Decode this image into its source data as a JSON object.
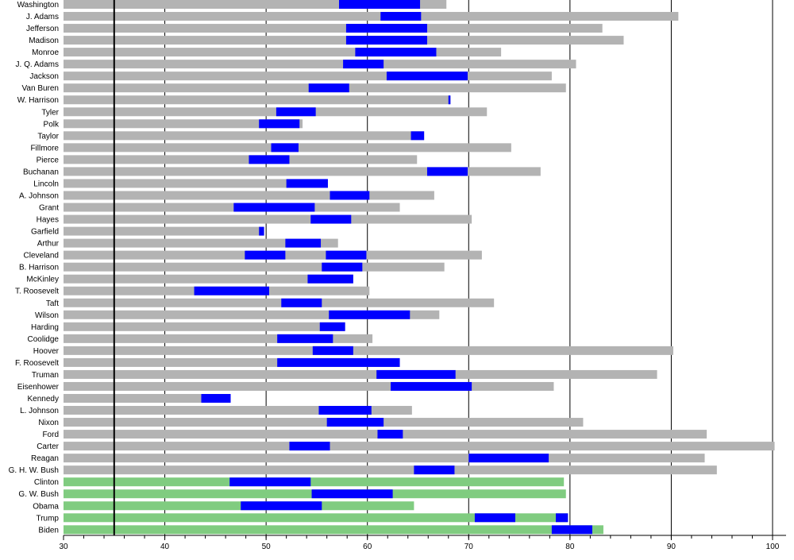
{
  "chart_data": {
    "type": "bar",
    "orientation": "horizontal",
    "xlim": [
      30,
      100
    ],
    "x_ticks": [
      30,
      40,
      50,
      60,
      70,
      80,
      90,
      100
    ],
    "x_tick_labels": [
      "30",
      "40",
      "50",
      "60",
      "70",
      "80",
      "90",
      "100"
    ],
    "minor_tick_step": 2,
    "reference_line": 35,
    "grid": true,
    "colors": {
      "deceased": "#b3b3b3",
      "living": "#80cc80",
      "in_office": "#0000ff",
      "grid": "#000000"
    },
    "presidents": [
      {
        "name": "Washington",
        "terms": [
          [
            57.2,
            65.2
          ]
        ],
        "end": 67.8,
        "living": false
      },
      {
        "name": "J. Adams",
        "terms": [
          [
            61.3,
            65.3
          ]
        ],
        "end": 90.7,
        "living": false
      },
      {
        "name": "Jefferson",
        "terms": [
          [
            57.9,
            65.9
          ]
        ],
        "end": 83.2,
        "living": false
      },
      {
        "name": "Madison",
        "terms": [
          [
            57.9,
            65.9
          ]
        ],
        "end": 85.3,
        "living": false
      },
      {
        "name": "Monroe",
        "terms": [
          [
            58.8,
            66.8
          ]
        ],
        "end": 73.2,
        "living": false
      },
      {
        "name": "J. Q. Adams",
        "terms": [
          [
            57.6,
            61.6
          ]
        ],
        "end": 80.6,
        "living": false
      },
      {
        "name": "Jackson",
        "terms": [
          [
            61.9,
            69.9
          ]
        ],
        "end": 78.2,
        "living": false
      },
      {
        "name": "Van Buren",
        "terms": [
          [
            54.2,
            58.2
          ]
        ],
        "end": 79.6,
        "living": false
      },
      {
        "name": "W. Harrison",
        "terms": [
          [
            68.0,
            68.2
          ]
        ],
        "end": 68.2,
        "living": false
      },
      {
        "name": "Tyler",
        "terms": [
          [
            51.0,
            54.9
          ]
        ],
        "end": 71.8,
        "living": false
      },
      {
        "name": "Polk",
        "terms": [
          [
            49.3,
            53.3
          ]
        ],
        "end": 53.6,
        "living": false
      },
      {
        "name": "Taylor",
        "terms": [
          [
            64.3,
            65.6
          ]
        ],
        "end": 65.6,
        "living": false
      },
      {
        "name": "Fillmore",
        "terms": [
          [
            50.5,
            53.2
          ]
        ],
        "end": 74.2,
        "living": false
      },
      {
        "name": "Pierce",
        "terms": [
          [
            48.3,
            52.3
          ]
        ],
        "end": 64.9,
        "living": false
      },
      {
        "name": "Buchanan",
        "terms": [
          [
            65.9,
            69.9
          ]
        ],
        "end": 77.1,
        "living": false
      },
      {
        "name": "Lincoln",
        "terms": [
          [
            52.0,
            56.1
          ]
        ],
        "end": 56.1,
        "living": false
      },
      {
        "name": "A. Johnson",
        "terms": [
          [
            56.3,
            60.2
          ]
        ],
        "end": 66.6,
        "living": false
      },
      {
        "name": "Grant",
        "terms": [
          [
            46.8,
            54.8
          ]
        ],
        "end": 63.2,
        "living": false
      },
      {
        "name": "Hayes",
        "terms": [
          [
            54.4,
            58.4
          ]
        ],
        "end": 70.3,
        "living": false
      },
      {
        "name": "Garfield",
        "terms": [
          [
            49.3,
            49.8
          ]
        ],
        "end": 49.8,
        "living": false
      },
      {
        "name": "Arthur",
        "terms": [
          [
            51.9,
            55.4
          ]
        ],
        "end": 57.1,
        "living": false
      },
      {
        "name": "Cleveland",
        "terms": [
          [
            47.9,
            51.9
          ],
          [
            55.9,
            59.9
          ]
        ],
        "end": 71.3,
        "living": false
      },
      {
        "name": "B. Harrison",
        "terms": [
          [
            55.5,
            59.5
          ]
        ],
        "end": 67.6,
        "living": false
      },
      {
        "name": "McKinley",
        "terms": [
          [
            54.1,
            58.6
          ]
        ],
        "end": 58.6,
        "living": false
      },
      {
        "name": "T. Roosevelt",
        "terms": [
          [
            42.9,
            50.3
          ]
        ],
        "end": 60.2,
        "living": false
      },
      {
        "name": "Taft",
        "terms": [
          [
            51.5,
            55.5
          ]
        ],
        "end": 72.5,
        "living": false
      },
      {
        "name": "Wilson",
        "terms": [
          [
            56.2,
            64.2
          ]
        ],
        "end": 67.1,
        "living": false
      },
      {
        "name": "Harding",
        "terms": [
          [
            55.3,
            57.8
          ]
        ],
        "end": 57.8,
        "living": false
      },
      {
        "name": "Coolidge",
        "terms": [
          [
            51.1,
            56.6
          ]
        ],
        "end": 60.5,
        "living": false
      },
      {
        "name": "Hoover",
        "terms": [
          [
            54.6,
            58.6
          ]
        ],
        "end": 90.2,
        "living": false
      },
      {
        "name": "F. Roosevelt",
        "terms": [
          [
            51.1,
            63.2
          ]
        ],
        "end": 63.2,
        "living": false
      },
      {
        "name": "Truman",
        "terms": [
          [
            60.9,
            68.7
          ]
        ],
        "end": 88.6,
        "living": false
      },
      {
        "name": "Eisenhower",
        "terms": [
          [
            62.3,
            70.3
          ]
        ],
        "end": 78.4,
        "living": false
      },
      {
        "name": "Kennedy",
        "terms": [
          [
            43.6,
            46.5
          ]
        ],
        "end": 46.5,
        "living": false
      },
      {
        "name": "L. Johnson",
        "terms": [
          [
            55.2,
            60.4
          ]
        ],
        "end": 64.4,
        "living": false
      },
      {
        "name": "Nixon",
        "terms": [
          [
            56.0,
            61.6
          ]
        ],
        "end": 81.3,
        "living": false
      },
      {
        "name": "Ford",
        "terms": [
          [
            61.0,
            63.5
          ]
        ],
        "end": 93.5,
        "living": false
      },
      {
        "name": "Carter",
        "terms": [
          [
            52.3,
            56.3
          ]
        ],
        "end": 100.2,
        "living": false
      },
      {
        "name": "Reagan",
        "terms": [
          [
            70.0,
            77.9
          ]
        ],
        "end": 93.3,
        "living": false
      },
      {
        "name": "G. H. W. Bush",
        "terms": [
          [
            64.6,
            68.6
          ]
        ],
        "end": 94.5,
        "living": false
      },
      {
        "name": "Clinton",
        "terms": [
          [
            46.4,
            54.4
          ]
        ],
        "end": 79.4,
        "living": true
      },
      {
        "name": "G. W. Bush",
        "terms": [
          [
            54.5,
            62.5
          ]
        ],
        "end": 79.6,
        "living": true
      },
      {
        "name": "Obama",
        "terms": [
          [
            47.5,
            55.5
          ]
        ],
        "end": 64.6,
        "living": true
      },
      {
        "name": "Trump",
        "terms": [
          [
            70.6,
            74.6
          ],
          [
            78.6,
            79.8
          ]
        ],
        "end": 79.8,
        "living": true
      },
      {
        "name": "Biden",
        "terms": [
          [
            78.2,
            82.2
          ]
        ],
        "end": 83.3,
        "living": true
      }
    ]
  }
}
